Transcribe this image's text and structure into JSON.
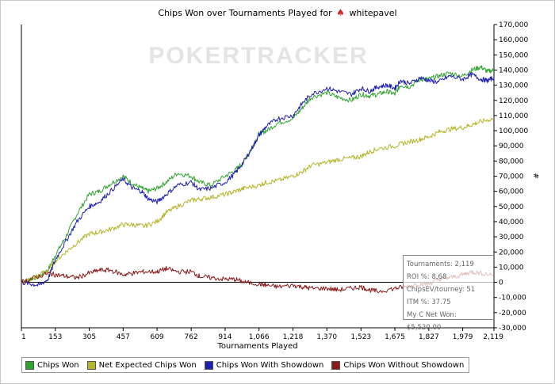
{
  "window": {
    "title_prefix": "Chips Won over Tournaments Played for",
    "player": "whitepavel",
    "suit_icon": "♠"
  },
  "watermark": "POKERTRACKER",
  "chart_data": {
    "type": "line",
    "title": "Chips Won over Tournaments Played for whitepavel",
    "xlabel": "Tournaments Played",
    "ylabel": "",
    "xlim": [
      1,
      2119
    ],
    "ylim": [
      -30000,
      170000
    ],
    "x_ticks": [
      1,
      153,
      305,
      457,
      609,
      762,
      914,
      1066,
      1218,
      1370,
      1523,
      1675,
      1827,
      1979,
      2119
    ],
    "x_tick_labels": [
      "1",
      "153",
      "305",
      "457",
      "609",
      "762",
      "914",
      "1,066",
      "1,218",
      "1,370",
      "1,523",
      "1,675",
      "1,827",
      "1,979",
      "2,119"
    ],
    "y_ticks": [
      -30000,
      -20000,
      -10000,
      0,
      10000,
      20000,
      30000,
      40000,
      50000,
      60000,
      70000,
      80000,
      90000,
      100000,
      110000,
      120000,
      130000,
      140000,
      150000,
      160000,
      170000
    ],
    "y_tick_labels": [
      "-30,000",
      "-20,000",
      "-10,000",
      "0",
      "10,000",
      "20,000",
      "30,000",
      "40,000",
      "50,000",
      "60,000",
      "70,000",
      "80,000",
      "90,000",
      "100,000",
      "110,000",
      "120,000",
      "130,000",
      "140,000",
      "150,000",
      "160,000",
      "170,000"
    ],
    "right_axis_label": "#",
    "series": [
      {
        "name": "Chips Won",
        "color": "#2fa52f",
        "x": [
          1,
          40,
          80,
          120,
          153,
          200,
          250,
          305,
          350,
          400,
          457,
          500,
          540,
          570,
          609,
          650,
          700,
          762,
          800,
          850,
          914,
          960,
          1000,
          1040,
          1066,
          1100,
          1150,
          1218,
          1260,
          1300,
          1370,
          1420,
          1480,
          1523,
          1560,
          1600,
          1640,
          1675,
          1700,
          1740,
          1790,
          1827,
          1870,
          1920,
          1979,
          2020,
          2060,
          2090,
          2119
        ],
        "values": [
          0,
          2000,
          4000,
          8000,
          18000,
          30000,
          45000,
          58000,
          60000,
          65000,
          70000,
          65000,
          62000,
          60000,
          62000,
          66000,
          72000,
          70000,
          66000,
          64000,
          70000,
          74000,
          80000,
          90000,
          98000,
          100000,
          105000,
          108000,
          115000,
          122000,
          125000,
          122000,
          120000,
          124000,
          123000,
          124000,
          126000,
          124000,
          130000,
          129000,
          134000,
          134000,
          136000,
          138000,
          136000,
          140000,
          142000,
          139000,
          140000
        ]
      },
      {
        "name": "Net Expected Chips Won",
        "color": "#b5b52a",
        "x": [
          1,
          60,
          120,
          153,
          200,
          250,
          305,
          350,
          400,
          457,
          500,
          550,
          609,
          650,
          700,
          762,
          800,
          850,
          914,
          960,
          1000,
          1066,
          1100,
          1150,
          1218,
          1260,
          1300,
          1370,
          1420,
          1480,
          1523,
          1560,
          1600,
          1675,
          1720,
          1780,
          1827,
          1870,
          1920,
          1979,
          2020,
          2060,
          2119
        ],
        "values": [
          0,
          3000,
          8000,
          14000,
          20000,
          26000,
          32000,
          33000,
          35000,
          38000,
          38000,
          37000,
          40000,
          46000,
          50000,
          54000,
          55000,
          56000,
          58000,
          60000,
          62000,
          64000,
          66000,
          67000,
          70000,
          73000,
          77000,
          79000,
          81000,
          82000,
          83000,
          86000,
          88000,
          90000,
          92000,
          94000,
          96000,
          99000,
          101000,
          102000,
          104000,
          106000,
          108000
        ]
      },
      {
        "name": "Chips Won With Showdown",
        "color": "#1f1fb0",
        "x": [
          1,
          40,
          80,
          120,
          153,
          200,
          250,
          305,
          350,
          400,
          457,
          500,
          540,
          570,
          609,
          650,
          700,
          762,
          800,
          850,
          914,
          960,
          1000,
          1040,
          1066,
          1100,
          1150,
          1218,
          1260,
          1300,
          1370,
          1420,
          1480,
          1523,
          1560,
          1600,
          1640,
          1675,
          1700,
          1740,
          1790,
          1827,
          1870,
          1920,
          1979,
          2020,
          2060,
          2090,
          2119
        ],
        "values": [
          0,
          -1000,
          -2000,
          2000,
          15000,
          27000,
          40000,
          50000,
          53000,
          60000,
          68000,
          62000,
          60000,
          55000,
          53000,
          58000,
          64000,
          66000,
          61000,
          62000,
          66000,
          72000,
          80000,
          90000,
          97000,
          103000,
          108000,
          110000,
          118000,
          124000,
          128000,
          126000,
          124000,
          128000,
          126000,
          129000,
          130000,
          128000,
          133000,
          131000,
          135000,
          133000,
          132000,
          136000,
          134000,
          137000,
          134000,
          133000,
          135000
        ]
      },
      {
        "name": "Chips Won Without Showdown",
        "color": "#8b1a1a",
        "x": [
          1,
          60,
          120,
          153,
          200,
          250,
          305,
          350,
          400,
          457,
          500,
          550,
          609,
          650,
          700,
          762,
          800,
          850,
          914,
          960,
          1000,
          1066,
          1100,
          1150,
          1218,
          1260,
          1300,
          1370,
          1420,
          1480,
          1523,
          1560,
          1600,
          1675,
          1720,
          1780,
          1827,
          1870,
          1920,
          1979,
          2020,
          2060,
          2119
        ],
        "values": [
          0,
          3000,
          6000,
          5000,
          4000,
          3000,
          6000,
          8000,
          8000,
          5000,
          6000,
          7000,
          7000,
          9000,
          7000,
          7000,
          4000,
          3000,
          2000,
          2000,
          0,
          -1000,
          -2000,
          -3000,
          -2000,
          -3000,
          -4000,
          -4000,
          -5000,
          -4000,
          -3000,
          -5000,
          -6000,
          -4000,
          -3000,
          -1000,
          -1000,
          2000,
          3000,
          5000,
          7000,
          6000,
          5000
        ]
      }
    ]
  },
  "tooltip": {
    "tournaments": "Tournaments: 2,119",
    "roi": "ROI %: 8.68",
    "chipsev": "ChipsEV/tourney: 51",
    "itm": "ITM %: 37.75",
    "net_won": "My C Net Won: $5,520.00"
  }
}
